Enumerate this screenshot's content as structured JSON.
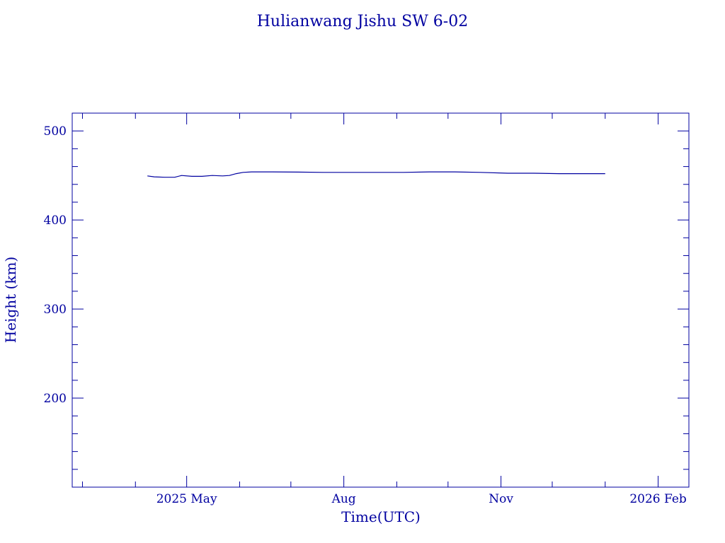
{
  "chart_data": {
    "type": "line",
    "title": "Hulianwang Jishu SW 6-02",
    "xlabel": "Time(UTC)",
    "ylabel": "Height (km)",
    "xlim": [
      "2025-02-23",
      "2026-02-19"
    ],
    "ylim": [
      100,
      520
    ],
    "x_ticks": [
      {
        "label": "2025 May",
        "date": "2025-05-01"
      },
      {
        "label": "Aug",
        "date": "2025-08-01"
      },
      {
        "label": "Nov",
        "date": "2025-11-01"
      },
      {
        "label": "2026 Feb",
        "date": "2026-02-01"
      }
    ],
    "y_ticks": [
      200,
      300,
      400,
      500
    ],
    "color": "#0000a0",
    "grid": false,
    "series": [
      {
        "x": [
          "2025-04-08",
          "2025-04-12",
          "2025-04-18",
          "2025-04-24",
          "2025-04-28",
          "2025-05-04",
          "2025-05-10",
          "2025-05-16",
          "2025-05-22",
          "2025-05-26",
          "2025-05-30",
          "2025-06-03",
          "2025-06-08",
          "2025-06-20",
          "2025-07-05",
          "2025-07-20",
          "2025-08-05",
          "2025-08-20",
          "2025-09-05",
          "2025-09-20",
          "2025-10-05",
          "2025-10-20",
          "2025-11-05",
          "2025-11-20",
          "2025-12-05",
          "2025-12-20",
          "2026-01-01"
        ],
        "y": [
          449.5,
          448.5,
          448,
          448,
          450,
          449,
          449,
          450,
          449.5,
          450,
          452,
          453.5,
          454,
          454,
          453.8,
          453.5,
          453.5,
          453.5,
          453.5,
          454,
          454,
          453.5,
          452.5,
          452.5,
          452,
          452,
          452
        ]
      }
    ]
  }
}
